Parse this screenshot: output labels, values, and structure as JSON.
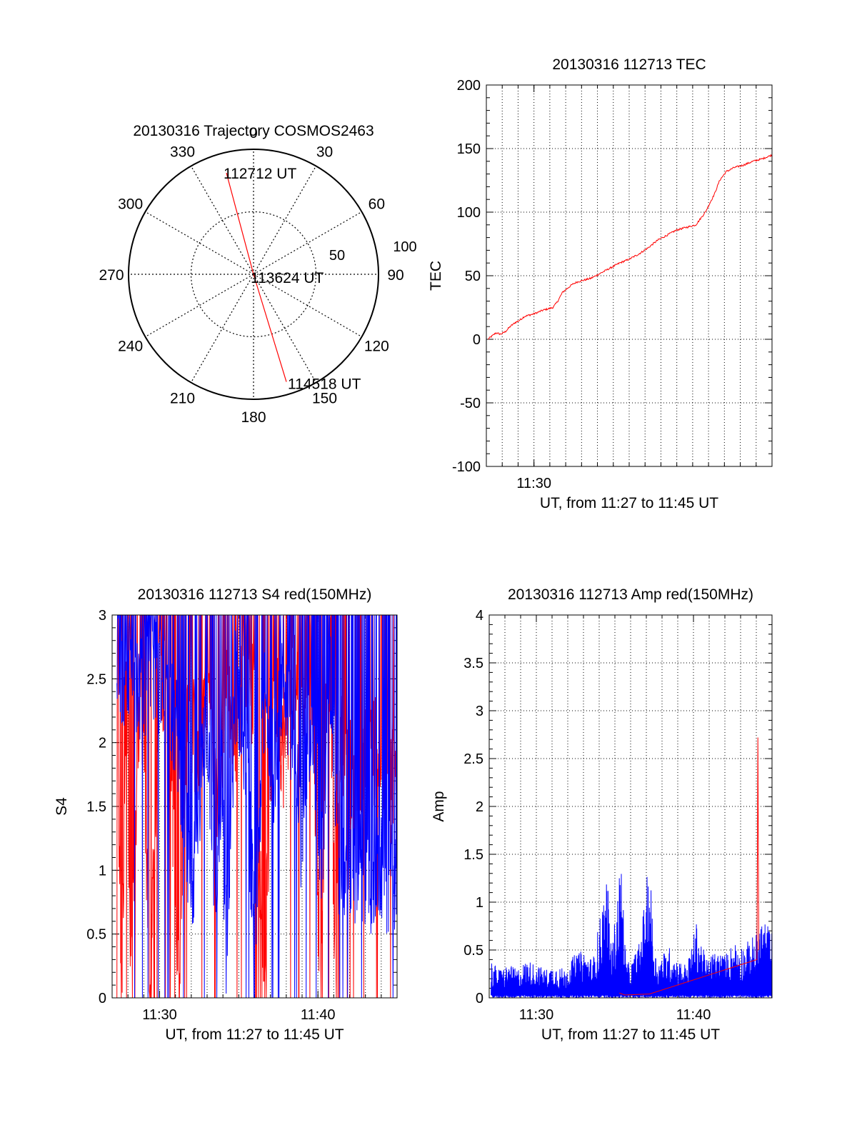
{
  "chart_data": [
    {
      "id": "trajectory",
      "type": "polar",
      "title": "20130316 Trajectory COSMOS2463",
      "azimuth_labels": [
        "0",
        "30",
        "60",
        "90",
        "120",
        "150",
        "180",
        "210",
        "240",
        "270",
        "300",
        "330"
      ],
      "azimuth_values": [
        0,
        30,
        60,
        90,
        120,
        150,
        180,
        210,
        240,
        270,
        300,
        330
      ],
      "radius_labels": [
        "50",
        "100"
      ],
      "radius_values": [
        50,
        100
      ],
      "radius_max": 100,
      "track_color": "#ff0000",
      "track": [
        {
          "label": "112712 UT",
          "az": 345,
          "zen": 84
        },
        {
          "label": "113624 UT",
          "az": 0,
          "zen": 0
        },
        {
          "label": "114518 UT",
          "az": 163,
          "zen": 90
        }
      ]
    },
    {
      "id": "tec",
      "type": "line",
      "title": "20130316 112713 TEC",
      "xlabel": "UT, from 11:27 to 11:45 UT",
      "ylabel": "TEC",
      "xlim": [
        11.45,
        11.75
      ],
      "ylim": [
        -100,
        200
      ],
      "yticks": [
        -100,
        -50,
        0,
        50,
        100,
        150,
        200
      ],
      "yticklabels": [
        "-100",
        "-50",
        "0",
        "50",
        "100",
        "150",
        "200"
      ],
      "xticks": [
        11.5
      ],
      "xticklabels": [
        "11:30"
      ],
      "grid": true,
      "series": [
        {
          "name": "TEC",
          "color": "#ff0000",
          "x": [
            11.4517,
            11.455,
            11.46,
            11.465,
            11.47,
            11.475,
            11.48,
            11.485,
            11.49,
            11.5,
            11.51,
            11.52,
            11.525,
            11.53,
            11.535,
            11.54,
            11.545,
            11.55,
            11.56,
            11.57,
            11.58,
            11.59,
            11.6,
            11.61,
            11.62,
            11.63,
            11.64,
            11.65,
            11.66,
            11.67,
            11.68,
            11.69,
            11.695,
            11.7,
            11.702,
            11.705,
            11.71,
            11.72,
            11.73,
            11.74,
            11.75
          ],
          "y": [
            0,
            2,
            5,
            4,
            6,
            10,
            13,
            15,
            18,
            20,
            23,
            25,
            30,
            37,
            40,
            43,
            45,
            46,
            48,
            52,
            56,
            60,
            63,
            67,
            72,
            78,
            82,
            86,
            88,
            90,
            100,
            115,
            125,
            130,
            132,
            133,
            135,
            137,
            140,
            142,
            145
          ]
        }
      ]
    },
    {
      "id": "s4",
      "type": "line",
      "title": "20130316 112713 S4 red(150MHz)",
      "xlabel": "UT, from 11:27 to 11:45 UT",
      "ylabel": "S4",
      "xlim": [
        11.45,
        11.75
      ],
      "ylim": [
        0,
        3
      ],
      "yticks": [
        0,
        0.5,
        1,
        1.5,
        2,
        2.5,
        3
      ],
      "yticklabels": [
        "0",
        "0.5",
        "1",
        "1.5",
        "2",
        "2.5",
        "3"
      ],
      "xticks": [
        11.5,
        11.6667
      ],
      "xticklabels": [
        "11:30",
        "11:40"
      ],
      "grid": true,
      "series": [
        {
          "name": "S4 red",
          "color": "#ff0000",
          "x": [
            11.455,
            11.46,
            11.465,
            11.47,
            11.48,
            11.49,
            11.5,
            11.51,
            11.52,
            11.53,
            11.54,
            11.55,
            11.56,
            11.57,
            11.58,
            11.59,
            11.6,
            11.61,
            11.62,
            11.63,
            11.64,
            11.65,
            11.66,
            11.67,
            11.675,
            11.68,
            11.685,
            11.69,
            11.7,
            11.71,
            11.72,
            11.73,
            11.735,
            11.74,
            11.745,
            11.75
          ],
          "y": [
            2.6,
            0,
            2.5,
            0,
            2.6,
            0,
            2.7,
            2.2,
            0,
            2.5,
            1.8,
            2.6,
            1.5,
            2.4,
            2.0,
            2.7,
            2.3,
            0,
            2.6,
            1.9,
            2.5,
            2.4,
            2.6,
            0,
            2.2,
            2.6,
            0,
            2.0,
            1.8,
            1.6,
            2.0,
            1.9,
            1.7,
            2.1,
            1.8,
            1.9
          ]
        },
        {
          "name": "S4 blue",
          "color": "#0000ff",
          "x": [
            11.455,
            11.46,
            11.47,
            11.48,
            11.49,
            11.5,
            11.51,
            11.52,
            11.53,
            11.535,
            11.54,
            11.55,
            11.56,
            11.565,
            11.57,
            11.58,
            11.59,
            11.6,
            11.61,
            11.62,
            11.63,
            11.64,
            11.65,
            11.66,
            11.67,
            11.68,
            11.69,
            11.7,
            11.71,
            11.72,
            11.73,
            11.74,
            11.75
          ],
          "y": [
            2.8,
            2.5,
            2.7,
            2.4,
            2.6,
            2.5,
            2.3,
            2.0,
            1.1,
            0.9,
            1.5,
            2.2,
            0.6,
            1.8,
            0.4,
            2.5,
            2.0,
            0.5,
            2.3,
            1.8,
            2.6,
            2.0,
            1.2,
            2.4,
            1.0,
            2.5,
            0.9,
            0.95,
            1.05,
            0.9,
            1.0,
            0.95,
            0.9
          ]
        }
      ]
    },
    {
      "id": "amp",
      "type": "line",
      "title": "20130316 112713 Amp red(150MHz)",
      "xlabel": "UT, from 11:27 to 11:45 UT",
      "ylabel": "Amp",
      "xlim": [
        11.45,
        11.75
      ],
      "ylim": [
        0,
        4
      ],
      "yticks": [
        0,
        0.5,
        1,
        1.5,
        2,
        2.5,
        3,
        3.5,
        4
      ],
      "yticklabels": [
        "0",
        "0.5",
        "1",
        "1.5",
        "2",
        "2.5",
        "3",
        "3.5",
        "4"
      ],
      "xticks": [
        11.5,
        11.6667
      ],
      "xticklabels": [
        "11:30",
        "11:40"
      ],
      "grid": true,
      "series": [
        {
          "name": "Amp blue",
          "color": "#0000ff",
          "x": [
            11.452,
            11.46,
            11.47,
            11.48,
            11.49,
            11.5,
            11.51,
            11.52,
            11.53,
            11.54,
            11.55,
            11.56,
            11.575,
            11.58,
            11.59,
            11.595,
            11.6,
            11.61,
            11.62,
            11.625,
            11.63,
            11.64,
            11.65,
            11.66,
            11.67,
            11.68,
            11.69,
            11.7,
            11.71,
            11.72,
            11.73,
            11.74,
            11.75
          ],
          "y": [
            0.4,
            0.3,
            0.35,
            0.3,
            0.4,
            0.35,
            0.3,
            0.35,
            0.3,
            0.45,
            0.5,
            0.4,
            1.3,
            0.5,
            1.5,
            0.4,
            0.35,
            0.6,
            1.5,
            0.5,
            0.4,
            0.55,
            0.4,
            0.35,
            0.8,
            0.4,
            0.5,
            0.45,
            0.6,
            0.55,
            0.65,
            0.85,
            0.7
          ]
        },
        {
          "name": "Amp red",
          "color": "#ff0000",
          "x": [
            11.588,
            11.594,
            11.62,
            11.734,
            11.735,
            11.736
          ],
          "y": [
            0.05,
            0.03,
            0.04,
            0.4,
            2.72,
            0.5
          ]
        }
      ]
    }
  ]
}
